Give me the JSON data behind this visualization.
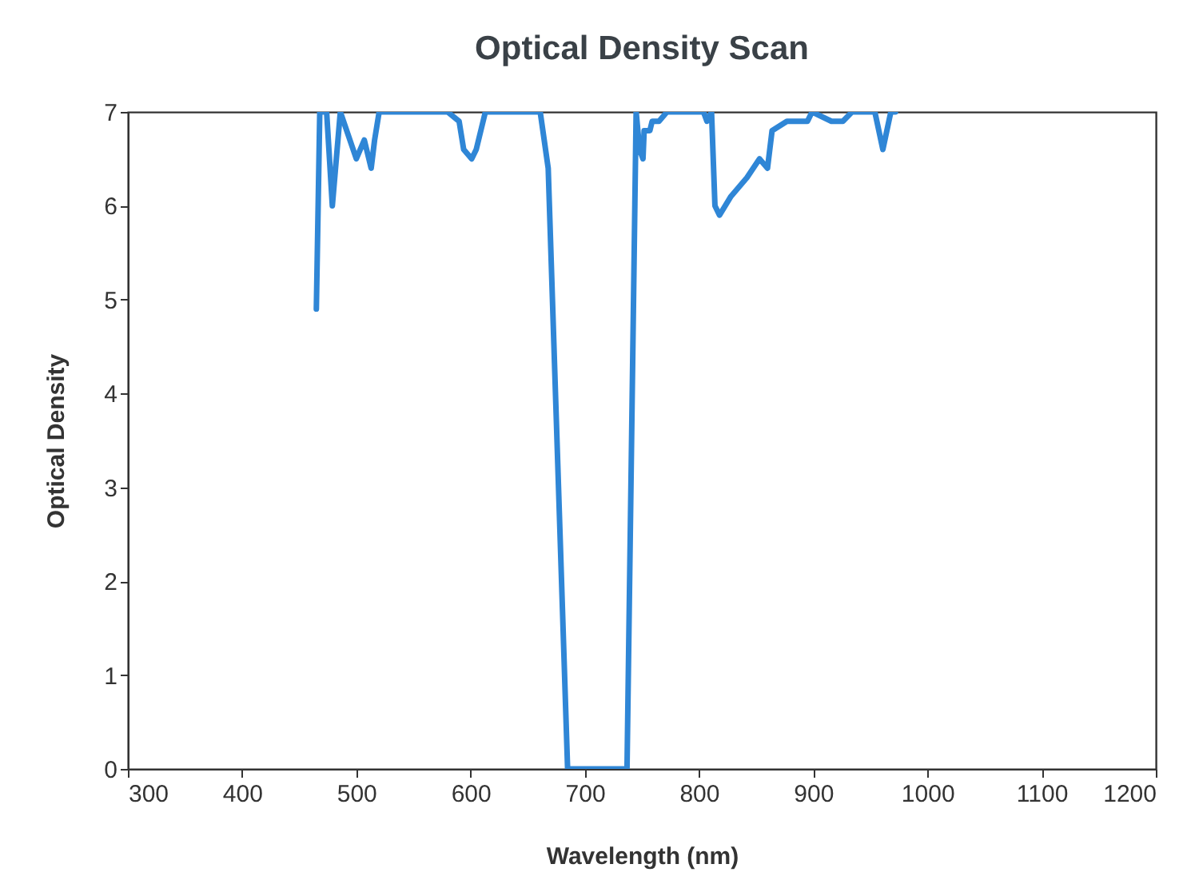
{
  "chart_data": {
    "type": "line",
    "title": "Optical Density Scan",
    "xlabel": "Wavelength (nm)",
    "ylabel": "Optical Density",
    "xlim": [
      300,
      1200
    ],
    "xticks": [
      300,
      400,
      500,
      600,
      700,
      800,
      900,
      1000,
      1100,
      1200
    ],
    "ylim": [
      0,
      7
    ],
    "yticks": [
      0,
      1,
      2,
      3,
      4,
      5,
      6,
      7
    ],
    "grid": false,
    "marker": "none",
    "line_style": "solid",
    "x": [
      465,
      468,
      474,
      479,
      486,
      500,
      507,
      513,
      516,
      520,
      556,
      580,
      590,
      594,
      601,
      605,
      611,
      613,
      661,
      668,
      685,
      737,
      745,
      748,
      751,
      752,
      757,
      759,
      765,
      772,
      804,
      807,
      811,
      814,
      818,
      828,
      842,
      853,
      860,
      864,
      877,
      884,
      895,
      899,
      916,
      926,
      934,
      954,
      961,
      968,
      972
    ],
    "series": [
      {
        "color": "#2f86d6",
        "values": [
          4.9,
          7,
          7,
          6,
          7,
          6.5,
          6.7,
          6.4,
          6.7,
          7,
          7,
          7,
          6.9,
          6.6,
          6.5,
          6.6,
          6.9,
          7,
          7,
          6.4,
          0,
          0,
          7,
          6.6,
          6.5,
          6.8,
          6.8,
          6.9,
          6.9,
          7,
          7,
          6.9,
          7,
          6,
          5.9,
          6.1,
          6.3,
          6.5,
          6.4,
          6.8,
          6.9,
          6.9,
          6.9,
          7,
          6.9,
          6.9,
          7,
          7,
          6.6,
          7,
          7
        ]
      }
    ]
  }
}
